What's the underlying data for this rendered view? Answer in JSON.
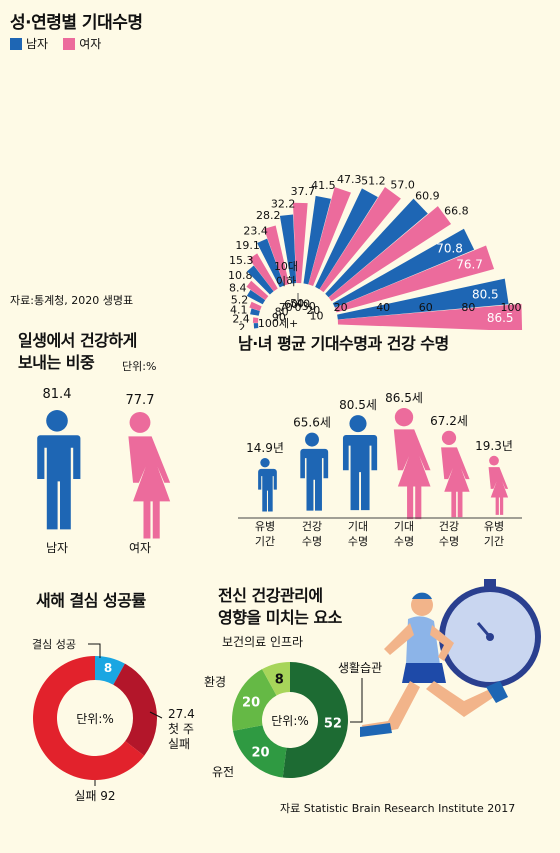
{
  "colors": {
    "male": "#1e66b4",
    "female": "#ec6b9c",
    "background": "#fefae6",
    "cyan": "#1aa6e2",
    "red_light": "#e2222c",
    "red_dark": "#b3162a",
    "green_dark": "#1d6b33",
    "green_mid": "#2f9a42",
    "green_light": "#65b945",
    "green_pale": "#a7d55a"
  },
  "chart_data": [
    {
      "type": "bar",
      "subtype": "radial-paired-bar",
      "title": "성·연령별 기대수명",
      "legend": [
        {
          "name": "남자",
          "color": "#1e66b4"
        },
        {
          "name": "여자",
          "color": "#ec6b9c"
        }
      ],
      "categories": [
        "100세+",
        "90",
        "80",
        "70",
        "60",
        "50",
        "40",
        "30",
        "20",
        "10",
        "10대 이하"
      ],
      "series": [
        {
          "name": "남자",
          "values": [
            2,
            4.1,
            8.4,
            15.3,
            23.4,
            32.2,
            41.5,
            51.2,
            60.9,
            70.8,
            80.5
          ]
        },
        {
          "name": "여자",
          "values": [
            2.4,
            5.2,
            10.8,
            19.1,
            28.2,
            37.7,
            47.3,
            57.0,
            66.8,
            76.7,
            86.5
          ]
        }
      ],
      "value_labels": {
        "male": [
          "2",
          "4.1",
          "8.4",
          "15.3",
          "23.4",
          "32.2",
          "41.5",
          "51.2",
          "60.9",
          "70.8",
          "80.5"
        ],
        "female": [
          "2.4",
          "5.2",
          "10.8",
          "19.1",
          "28.2",
          "37.7",
          "47.3",
          "57.0",
          "66.8",
          "76.7",
          "86.5"
        ]
      },
      "category_labels": [
        "100세+",
        "90",
        "80",
        "70",
        "60",
        "50",
        "40",
        "30",
        "20",
        "10",
        "10대",
        "이하"
      ],
      "axis_ticks": [
        "0",
        "20",
        "40",
        "60",
        "80",
        "100"
      ],
      "ylim": [
        0,
        100
      ],
      "source": "자료:통계청, 2020 생명표"
    },
    {
      "type": "bar",
      "subtype": "pictogram",
      "title_lines": [
        "일생에서 건강하게",
        "보내는 비중"
      ],
      "unit": "단위:%",
      "categories": [
        "남자",
        "여자"
      ],
      "values": [
        81.4,
        77.7
      ],
      "value_labels": [
        "81.4",
        "77.7"
      ]
    },
    {
      "type": "bar",
      "subtype": "pictogram",
      "title": "남·녀 평균 기대수명과 건강 수명",
      "categories": [
        [
          "유병",
          "기간"
        ],
        [
          "건강",
          "수명"
        ],
        [
          "기대",
          "수명"
        ],
        [
          "기대",
          "수명"
        ],
        [
          "건강",
          "수명"
        ],
        [
          "유병",
          "기간"
        ]
      ],
      "genders": [
        "male",
        "male",
        "male",
        "female",
        "female",
        "female"
      ],
      "values": [
        14.9,
        65.6,
        80.5,
        86.5,
        67.2,
        19.3
      ],
      "value_labels": [
        "14.9년",
        "65.6세",
        "80.5세",
        "86.5세",
        "67.2세",
        "19.3년"
      ]
    },
    {
      "type": "pie",
      "subtype": "donut",
      "title": "새해 결심 성공률",
      "center_label": "단위:%",
      "slices": [
        {
          "name": "결심 성공",
          "value": 8
        },
        {
          "name": "첫 주 실패",
          "value": 27.4
        },
        {
          "name": "실패",
          "value": 92
        }
      ],
      "labels": {
        "success": "결심 성공",
        "success_value": "8",
        "first_week_value": "27.4",
        "first_week_line1": "첫 주",
        "first_week_line2": "실패",
        "fail": "실패 92"
      }
    },
    {
      "type": "pie",
      "subtype": "donut",
      "title_lines": [
        "전신 건강관리에",
        "영향을 미치는 요소"
      ],
      "center_label": "단위:%",
      "slices": [
        {
          "name": "생활습관",
          "value": 52
        },
        {
          "name": "유전",
          "value": 20
        },
        {
          "name": "환경",
          "value": 20
        },
        {
          "name": "보건의료 인프라",
          "value": 8
        }
      ],
      "value_labels": [
        "52",
        "20",
        "20",
        "8"
      ],
      "source": "자료 Statistic Brain Research Institute 2017"
    }
  ]
}
